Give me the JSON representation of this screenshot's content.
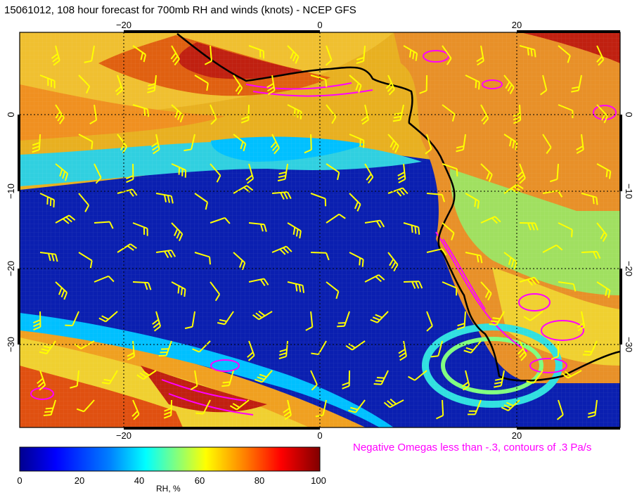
{
  "title": "15061012, 108 hour forecast for 700mb RH and winds (knots) - NCEP GFS",
  "note": "Negative Omegas less than -.3, contours of .3 Pa/s",
  "x_ticks_top": [
    "−20",
    "0",
    "20"
  ],
  "x_ticks_bottom": [
    "−20",
    "0",
    "20"
  ],
  "y_ticks_left": [
    "0",
    "−10",
    "−20",
    "−30"
  ],
  "y_ticks_right": [
    "0",
    "−10",
    "−20",
    "−30"
  ],
  "colorbar": {
    "label": "RH, %",
    "ticks": [
      "0",
      "20",
      "40",
      "60",
      "80",
      "100"
    ],
    "colors": [
      "#00008f",
      "#0000ff",
      "#0080ff",
      "#00ffff",
      "#80ff80",
      "#ffff00",
      "#ff8000",
      "#ff0000",
      "#800000"
    ]
  },
  "colors": {
    "coastline": "#000000",
    "wind_barbs": "#ffff00",
    "omega_contours": "#ff00ff"
  }
}
